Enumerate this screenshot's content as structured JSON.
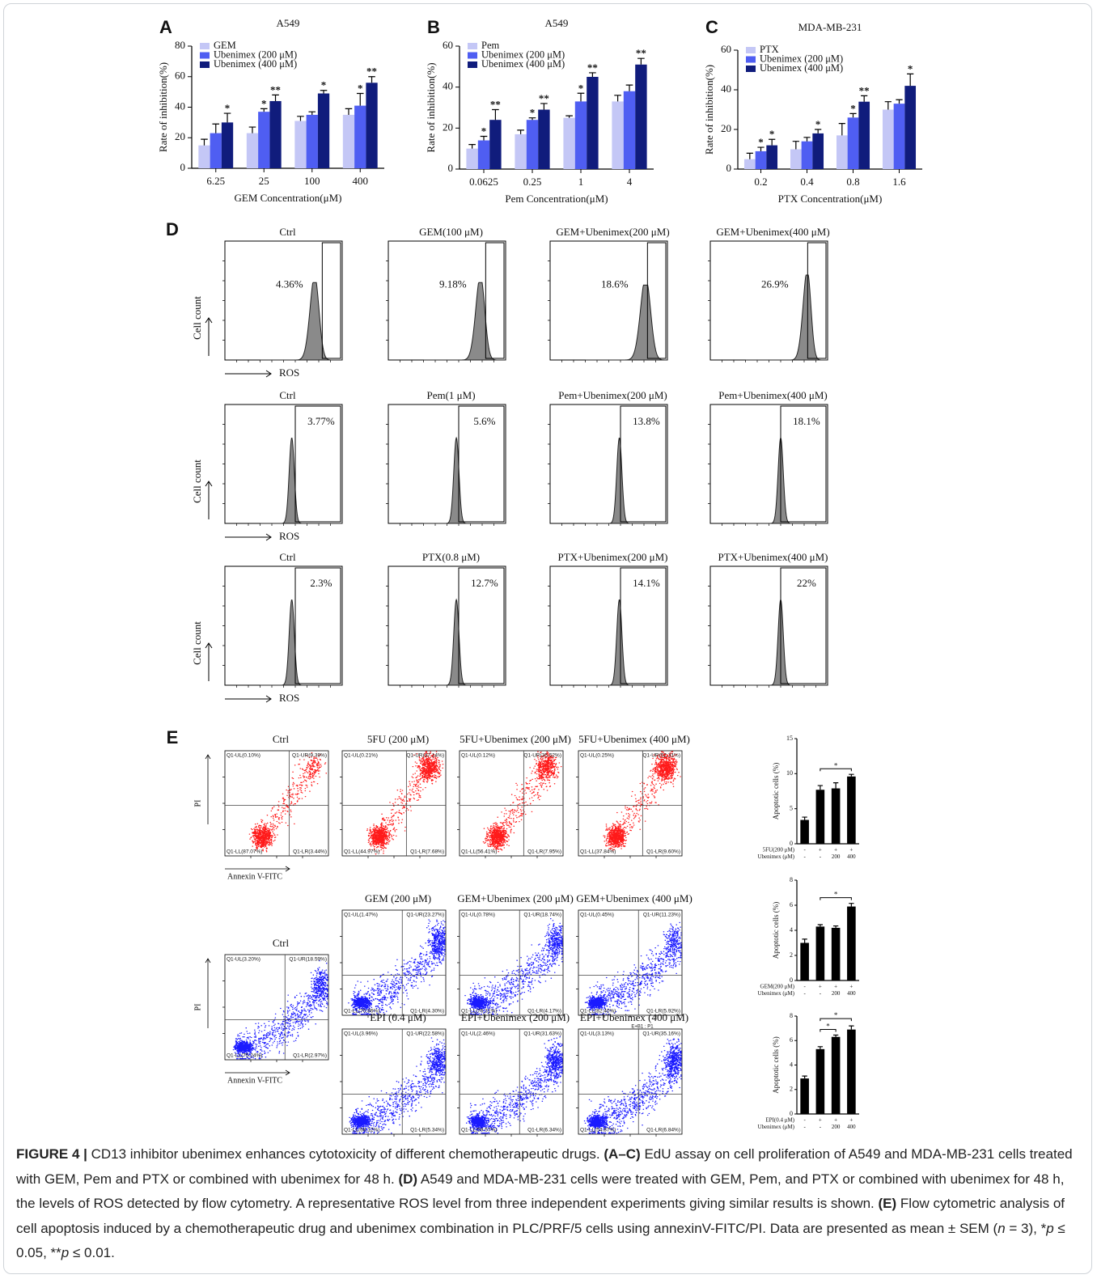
{
  "chart_data": [
    {
      "type": "bar",
      "panel": "A",
      "title": "A549",
      "x_label": "GEM Concentration(μM)",
      "y_label": "Rate of inhibition(%)",
      "categories": [
        "6.25",
        "25",
        "100",
        "400"
      ],
      "ylim": [
        0,
        80
      ],
      "yticks": [
        0,
        20,
        40,
        60,
        80
      ],
      "legend": "upper-left",
      "series": [
        {
          "name": "GEM",
          "color": "#c4c7f6",
          "values": [
            15,
            23,
            31,
            35
          ],
          "errors": [
            4,
            4,
            3,
            4
          ],
          "significance": [
            null,
            null,
            null,
            null
          ]
        },
        {
          "name": "Ubenimex (200 μM)",
          "color": "#4f5ef2",
          "values": [
            23,
            37,
            35,
            41
          ],
          "errors": [
            6,
            2,
            2,
            8
          ],
          "significance": [
            null,
            "*",
            null,
            "*"
          ]
        },
        {
          "name": "Ubenimex (400 μM)",
          "color": "#101c7c",
          "values": [
            30,
            44,
            49,
            56
          ],
          "errors": [
            6,
            4,
            2,
            4
          ],
          "significance": [
            "*",
            "**",
            "*",
            "**"
          ]
        }
      ]
    },
    {
      "type": "bar",
      "panel": "B",
      "title": "A549",
      "x_label": "Pem Concentration(μM)",
      "y_label": "Rate of inhibition(%)",
      "categories": [
        "0.0625",
        "0.25",
        "1",
        "4"
      ],
      "ylim": [
        0,
        60
      ],
      "yticks": [
        0,
        20,
        40,
        60
      ],
      "legend": "upper-left",
      "series": [
        {
          "name": "Pem",
          "color": "#c4c7f6",
          "values": [
            10,
            17,
            25,
            33
          ],
          "errors": [
            2,
            2,
            1,
            3
          ],
          "significance": [
            null,
            null,
            null,
            null
          ]
        },
        {
          "name": "Ubenimex (200 μM)",
          "color": "#4f5ef2",
          "values": [
            14,
            24,
            33,
            38
          ],
          "errors": [
            2,
            1,
            4,
            3
          ],
          "significance": [
            "*",
            "*",
            "*",
            null
          ]
        },
        {
          "name": "Ubenimex (400 μM)",
          "color": "#101c7c",
          "values": [
            24,
            29,
            45,
            51
          ],
          "errors": [
            5,
            3,
            2,
            3
          ],
          "significance": [
            "**",
            "**",
            "**",
            "**"
          ]
        }
      ]
    },
    {
      "type": "bar",
      "panel": "C",
      "title": "MDA-MB-231",
      "x_label": "PTX Concentration(μM)",
      "y_label": "Rate of inhibition(%)",
      "categories": [
        "0.2",
        "0.4",
        "0.8",
        "1.6"
      ],
      "ylim": [
        0,
        60
      ],
      "yticks": [
        0,
        20,
        40,
        60
      ],
      "legend": "upper-left",
      "series": [
        {
          "name": "PTX",
          "color": "#c4c7f6",
          "values": [
            5,
            10,
            17,
            30
          ],
          "errors": [
            3,
            4,
            6,
            4
          ],
          "significance": [
            null,
            null,
            null,
            null
          ]
        },
        {
          "name": "Ubenimex (200 μM)",
          "color": "#4f5ef2",
          "values": [
            9,
            14,
            26,
            33
          ],
          "errors": [
            2,
            2,
            2,
            2
          ],
          "significance": [
            "*",
            null,
            "*",
            null
          ]
        },
        {
          "name": "Ubenimex (400 μM)",
          "color": "#101c7c",
          "values": [
            12,
            18,
            34,
            42
          ],
          "errors": [
            3,
            2,
            3,
            6
          ],
          "significance": [
            "*",
            "*",
            "**",
            "*"
          ]
        }
      ]
    },
    {
      "type": "bar",
      "y_label": "Apoptotic cells (%)",
      "color": "#000000",
      "values": [
        3.4,
        7.7,
        7.9,
        9.6
      ],
      "errors": [
        0.4,
        0.6,
        0.8,
        0.3
      ],
      "ylim": [
        0,
        15
      ],
      "yticks": [
        0,
        5,
        10,
        15
      ],
      "treatments": [
        {
          "label": "5FU(200 μM)",
          "levels": [
            "-",
            "+",
            "+",
            "+"
          ]
        },
        {
          "label": "Ubenimex (μM)",
          "levels": [
            "-",
            "-",
            "200",
            "400"
          ]
        }
      ],
      "brackets": [
        {
          "from": 1,
          "to": 3,
          "label": "*"
        }
      ]
    },
    {
      "type": "bar",
      "y_label": "Apoptotic cells (%)",
      "color": "#000000",
      "values": [
        3.0,
        4.3,
        4.2,
        5.9
      ],
      "errors": [
        0.3,
        0.15,
        0.15,
        0.25
      ],
      "ylim": [
        0,
        8
      ],
      "yticks": [
        0,
        2,
        4,
        6,
        8
      ],
      "treatments": [
        {
          "label": "GEM(200 μM)",
          "levels": [
            "-",
            "+",
            "+",
            "+"
          ]
        },
        {
          "label": "Ubenimex (μM)",
          "levels": [
            "-",
            "-",
            "200",
            "400"
          ]
        }
      ],
      "brackets": [
        {
          "from": 1,
          "to": 3,
          "label": "*"
        }
      ]
    },
    {
      "type": "bar",
      "y_label": "Apoptotic cells (%)",
      "color": "#000000",
      "values": [
        2.9,
        5.3,
        6.3,
        6.9
      ],
      "errors": [
        0.2,
        0.2,
        0.15,
        0.3
      ],
      "ylim": [
        0,
        8
      ],
      "yticks": [
        0,
        2,
        4,
        6,
        8
      ],
      "treatments": [
        {
          "label": "EPI(0.4 μM)",
          "levels": [
            "-",
            "+",
            "+",
            "+"
          ]
        },
        {
          "label": "Ubenimex (μM)",
          "levels": [
            "-",
            "-",
            "200",
            "400"
          ]
        }
      ],
      "brackets": [
        {
          "from": 1,
          "to": 2,
          "label": "*"
        },
        {
          "from": 1,
          "to": 3,
          "label": "*"
        }
      ]
    }
  ],
  "ros_panels": {
    "panel": "D",
    "rows": [
      {
        "y_label": "Cell count",
        "x_label": "ROS",
        "plots": [
          {
            "title": "Ctrl",
            "percent": "4.36%"
          },
          {
            "title": "GEM(100 μM)",
            "percent": "9.18%"
          },
          {
            "title": "GEM+Ubenimex(200 μM)",
            "percent": "18.6%"
          },
          {
            "title": "GEM+Ubenimex(400 μM)",
            "percent": "26.9%"
          }
        ]
      },
      {
        "y_label": "Cell count",
        "x_label": "ROS",
        "plots": [
          {
            "title": "Ctrl",
            "percent": "3.77%"
          },
          {
            "title": "Pem(1 μM)",
            "percent": "5.6%"
          },
          {
            "title": "Pem+Ubenimex(200 μM)",
            "percent": "13.8%"
          },
          {
            "title": "Pem+Ubenimex(400 μM)",
            "percent": "18.1%"
          }
        ]
      },
      {
        "y_label": "Cell count",
        "x_label": "ROS",
        "plots": [
          {
            "title": "Ctrl",
            "percent": "2.3%"
          },
          {
            "title": "PTX(0.8 μM)",
            "percent": "12.7%"
          },
          {
            "title": "PTX+Ubenimex(200 μM)",
            "percent": "14.1%"
          },
          {
            "title": "PTX+Ubenimex(400 μM)",
            "percent": "22%"
          }
        ]
      }
    ]
  },
  "apoptosis_panels": {
    "panel": "E",
    "plots": [
      {
        "title": "Ctrl",
        "color": "#ff1a1a",
        "y_label": "PI",
        "x_label": "Annexin V-FITC",
        "quadrants": {
          "UL": "Q1-UL(0.10%)",
          "UR": "Q1-UR(9.39%)",
          "LL": "Q1-LL(87.07%)",
          "LR": "Q1-LR(3.44%)"
        }
      },
      {
        "title": "5FU (200 μM)",
        "color": "#ff1a1a",
        "quadrants": {
          "UL": "Q1-UL(0.21%)",
          "UR": "Q1-UR(47.14%)",
          "LL": "Q1-LL(44.97%)",
          "LR": "Q1-LR(7.68%)"
        }
      },
      {
        "title": "5FU+Ubenimex (200 μM)",
        "color": "#ff1a1a",
        "quadrants": {
          "UL": "Q1-UL(0.12%)",
          "UR": "Q1-UR(35.52%)",
          "LL": "Q1-LL(56.41%)",
          "LR": "Q1-LR(7.95%)"
        }
      },
      {
        "title": "5FU+Ubenimex (400 μM)",
        "color": "#ff1a1a",
        "quadrants": {
          "UL": "Q1-UL(0.25%)",
          "UR": "Q1-UR(52.31%)",
          "LL": "Q1-LL(37.84%)",
          "LR": "Q1-LR(9.60%)"
        }
      },
      {
        "title": "GEM (200 μM)",
        "color": "#1a1aff",
        "quadrants": {
          "UL": "Q1-UL(1.47%)",
          "UR": "Q1-UR(23.27%)",
          "LL": "Q1-LL(70.86%)",
          "LR": "Q1-LR(4.30%)"
        }
      },
      {
        "title": "GEM+Ubenimex (200 μM)",
        "color": "#1a1aff",
        "quadrants": {
          "UL": "Q1-UL(0.78%)",
          "UR": "Q1-UR(18.74%)",
          "LL": "Q1-LL(76.31%)",
          "LR": "Q1-LR(4.17%)"
        }
      },
      {
        "title": "GEM+Ubenimex (400 μM)",
        "color": "#1a1aff",
        "quadrants": {
          "UL": "Q1-UL(0.45%)",
          "UR": "Q1-UR(11.23%)",
          "LL": "Q1-LL(82.40%)",
          "LR": "Q1-LR(5.92%)"
        }
      },
      {
        "title": "Ctrl",
        "color": "#1a1aff",
        "y_label": "PI",
        "x_label": "Annexin V-FITC",
        "quadrants": {
          "UL": "Q1-UL(3.20%)",
          "UR": "Q1-UR(18.59%)",
          "LL": "Q1-LL(75.24%)",
          "LR": "Q1-LR(2.97%)"
        }
      },
      {
        "title": "EPI (0.4 μM)",
        "color": "#1a1aff",
        "quadrants": {
          "UL": "Q1-UL(3.96%)",
          "UR": "Q1-UR(22.58%)",
          "LL": "Q1-LL(68.12%)",
          "LR": "Q1-LR(5.34%)"
        }
      },
      {
        "title": "EPI+Ubenimex (200 μM)",
        "color": "#1a1aff",
        "quadrants": {
          "UL": "Q1-UL(2.46%)",
          "UR": "Q1-UR(31.63%)",
          "LL": "Q1-LL(59.57%)",
          "LR": "Q1-LR(6.34%)"
        }
      },
      {
        "title": "EPI+Ubenimex (400 μM)",
        "note": "E+B1 : P1",
        "color": "#1a1aff",
        "quadrants": {
          "UL": "Q1-UL(3.13%)",
          "UR": "Q1-UR(35.16%)",
          "LL": "Q1-LL(54.87%)",
          "LR": "Q1-LR(6.84%)"
        }
      }
    ]
  },
  "caption": [
    {
      "text": "FIGURE 4 | ",
      "bold": true
    },
    {
      "text": "CD13 inhibitor ubenimex enhances cytotoxicity of different chemotherapeutic drugs. "
    },
    {
      "text": "(A–C)",
      "bold": true
    },
    {
      "text": " EdU assay on cell proliferation of A549 and MDA-MB-231 cells treated with GEM, Pem and PTX or combined with ubenimex for 48 h. "
    },
    {
      "text": "(D)",
      "bold": true
    },
    {
      "text": " A549 and MDA-MB-231 cells were treated with GEM, Pem, and PTX or combined with ubenimex for 48 h, the levels of ROS detected by flow cytometry. A representative ROS level from three independent experiments giving similar results is shown. "
    },
    {
      "text": "(E)",
      "bold": true
    },
    {
      "text": " Flow cytometric analysis of cell apoptosis induced by a chemotherapeutic drug and ubenimex combination in PLC/PRF/5 cells using annexinV-FITC/PI. Data are presented as mean ± SEM ("
    },
    {
      "text": "n",
      "italic": true
    },
    {
      "text": " = 3), *"
    },
    {
      "text": "p",
      "italic": true
    },
    {
      "text": " ≤ 0.05, **"
    },
    {
      "text": "p",
      "italic": true
    },
    {
      "text": " ≤ 0.01."
    }
  ]
}
